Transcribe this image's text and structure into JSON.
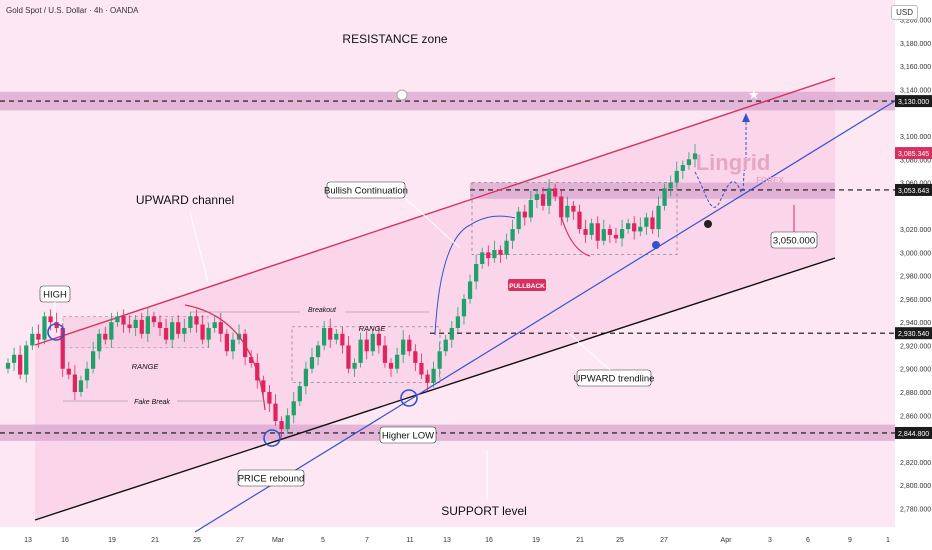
{
  "header": {
    "symbol": "Gold Spot / U.S. Dollar · 4h · OANDA",
    "currency": "USD"
  },
  "colors": {
    "bg": "#fde7f3",
    "zone": "#d9a6cf",
    "rangeBox": "#f6c9e0",
    "up": "#22a06b",
    "down": "#e0245e",
    "trendRed": "#d6305e",
    "trendBlue": "#3352d0",
    "black": "#111111"
  },
  "price_axis": {
    "ticks": [
      "3,200.000",
      "3,180.000",
      "3,160.000",
      "3,140.000",
      "3,100.000",
      "3,080.000",
      "3,060.000",
      "3,020.000",
      "3,000.000",
      "2,980.000",
      "2,960.000",
      "2,940.000",
      "2,920.000",
      "2,900.000",
      "2,880.000",
      "2,860.000",
      "2,820.000",
      "2,800.000",
      "2,780.000"
    ],
    "tags": [
      {
        "text": "3,130.000",
        "value": 3130,
        "style": "dark"
      },
      {
        "text": "3,085.345",
        "value": 3085.345,
        "style": "red"
      },
      {
        "text": "3,053.643",
        "value": 3053.643,
        "style": "dark"
      },
      {
        "text": "2,930.540",
        "value": 2930.54,
        "style": "dark"
      },
      {
        "text": "2,844.800",
        "value": 2844.8,
        "style": "dark"
      }
    ]
  },
  "time_axis": {
    "ticks": [
      "13",
      "16",
      "19",
      "21",
      "25",
      "27",
      "Mar",
      "5",
      "7",
      "11",
      "13",
      "16",
      "19",
      "21",
      "25",
      "27",
      "Apr",
      "3",
      "6",
      "9",
      "1"
    ]
  },
  "annotations": {
    "resistance": "RESISTANCE zone",
    "channel": "UPWARD channel",
    "high": "HIGH",
    "range1": "RANGE",
    "range2": "RANGE",
    "breakout": "Breakout",
    "fakebreak": "Fake Break",
    "rebound": "PRICE rebound",
    "higherlow": "Higher LOW",
    "support": "SUPPORT level",
    "bullish": "Bullish Continuation",
    "pullback": "PULLBACK",
    "uptrend": "UPWARD trendline",
    "target": "3,050.000",
    "logo": "Lingrid",
    "logo2": "FOREX"
  },
  "chart_data": {
    "type": "candlestick",
    "ylim": [
      2770,
      3210
    ],
    "levels": {
      "resistance_zone": [
        3122,
        3138
      ],
      "dashed_top": 3130,
      "mid_zone": [
        3046,
        3060
      ],
      "dashed_mid": 3053.643,
      "dashed_low": 2930.54,
      "support_zone": [
        2838,
        2852
      ],
      "dashed_support": 2844.8
    },
    "closes": [
      2905,
      2912,
      2895,
      2920,
      2930,
      2925,
      2945,
      2940,
      2935,
      2900,
      2895,
      2880,
      2890,
      2900,
      2915,
      2930,
      2925,
      2940,
      2945,
      2938,
      2935,
      2942,
      2930,
      2945,
      2940,
      2935,
      2925,
      2940,
      2930,
      2935,
      2945,
      2938,
      2925,
      2935,
      2940,
      2930,
      2915,
      2925,
      2930,
      2910,
      2905,
      2890,
      2880,
      2870,
      2855,
      2848,
      2860,
      2872,
      2885,
      2900,
      2910,
      2920,
      2935,
      2925,
      2930,
      2920,
      2900,
      2905,
      2925,
      2915,
      2930,
      2920,
      2905,
      2900,
      2912,
      2925,
      2915,
      2905,
      2895,
      2888,
      2900,
      2915,
      2925,
      2935,
      2945,
      2960,
      2975,
      2990,
      3000,
      2995,
      3002,
      2998,
      3010,
      3020,
      3035,
      3030,
      3045,
      3050,
      3040,
      3055,
      3048,
      3030,
      3040,
      3035,
      3020,
      3015,
      3025,
      3010,
      3020,
      3015,
      3012,
      3020,
      3025,
      3018,
      3022,
      3030,
      3020,
      3040,
      3055,
      3060,
      3070,
      3075,
      3080,
      3085
    ]
  }
}
